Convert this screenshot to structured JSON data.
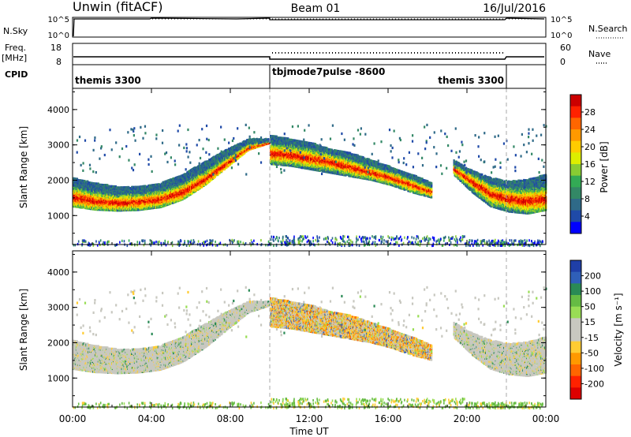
{
  "header": {
    "site": "Unwin (fitACF)",
    "beam": "Beam 01",
    "date": "16/Jul/2016"
  },
  "panel_nsky": {
    "left_label": "N.Sky",
    "right_label": "N.Search",
    "left_ticks": [
      "10^5",
      "10^0"
    ],
    "right_ticks": [
      "10^5",
      "10^0"
    ]
  },
  "panel_freq": {
    "left_label": "Freq.",
    "left_unit": "[MHz]",
    "right_label": "Nave",
    "left_ticks": [
      "18",
      "8"
    ],
    "right_ticks": [
      "60",
      "0"
    ]
  },
  "panel_cpid": {
    "label": "CPID",
    "segments": [
      {
        "start": 0,
        "end": 10,
        "name": "themis 3300"
      },
      {
        "start": 10,
        "end": 22,
        "name": "tbjmode7pulse -8600"
      },
      {
        "start": 22,
        "end": 24,
        "name": "themis 3300"
      }
    ],
    "boundaries": [
      10,
      22
    ]
  },
  "x_axis": {
    "title": "Time UT",
    "ticks": [
      0,
      4,
      8,
      12,
      16,
      20,
      24
    ],
    "tick_labels": [
      "00:00",
      "04:00",
      "08:00",
      "12:00",
      "16:00",
      "20:00",
      "00:00"
    ],
    "range": [
      0,
      24
    ]
  },
  "power_panel": {
    "ylabel": "Slant Range [km]",
    "yticks": [
      "1000",
      "2000",
      "3000",
      "4000"
    ],
    "ylim": [
      180,
      4600
    ],
    "colorbar_title": "Power [dB]",
    "colorbar_labels": [
      "28",
      "24",
      "20",
      "16",
      "12",
      "8",
      "4"
    ],
    "colorbar_colors": [
      "#cc0000",
      "#ff2200",
      "#ff6600",
      "#ff9900",
      "#ffcc00",
      "#ddee00",
      "#88cc33",
      "#33aa55",
      "#338866",
      "#2f6a88",
      "#1f4aa8",
      "#0000ff"
    ]
  },
  "velocity_panel": {
    "ylabel": "Slant Range [km]",
    "yticks": [
      "1000",
      "2000",
      "3000",
      "4000"
    ],
    "ylim": [
      180,
      4600
    ],
    "colorbar_title": "Velocity [m s⁻¹]",
    "colorbar_labels": [
      "200",
      "100",
      "50",
      "15",
      "-15",
      "-50",
      "-100",
      "-200"
    ],
    "colorbar_colors": [
      "#1f3fa8",
      "#2f5fb8",
      "#2a8a55",
      "#66bb44",
      "#99dd55",
      "#c8c8c0",
      "#c8c8c0",
      "#ffcc33",
      "#ff9900",
      "#ff6600",
      "#ff2200",
      "#dd0000"
    ]
  },
  "chart_data": {
    "type": "heatmap",
    "x_unit": "hours UT",
    "y_unit": "km",
    "xlim": [
      0,
      24
    ],
    "ylim": [
      180,
      4600
    ],
    "bands": [
      {
        "t0": 0.0,
        "t1": 10.0,
        "lo": [
          1300,
          1210,
          1180,
          1200,
          1280,
          1500,
          1900,
          2400,
          2900,
          3100
        ],
        "hi": [
          2100,
          1950,
          1850,
          1850,
          1950,
          2200,
          2550,
          2900,
          3200,
          3200
        ],
        "core": [
          1550,
          1450,
          1400,
          1420,
          1500,
          1700,
          2050,
          2500,
          2950,
          3100
        ],
        "type": "A"
      },
      {
        "t0": 10.0,
        "t1": 18.2,
        "lo": [
          2500,
          2450,
          2350,
          2250,
          2150,
          2050,
          1900,
          1700,
          1550
        ],
        "hi": [
          3300,
          3200,
          3100,
          2900,
          2800,
          2600,
          2400,
          2200,
          1950
        ],
        "core": [
          2800,
          2750,
          2650,
          2550,
          2400,
          2250,
          2100,
          1900,
          1700
        ],
        "type": "B"
      },
      {
        "t0": 19.3,
        "t1": 24.0,
        "lo": [
          2200,
          1700,
          1300,
          1150,
          1100,
          1200
        ],
        "hi": [
          2600,
          2300,
          2100,
          2000,
          2050,
          2200
        ],
        "core": [
          2350,
          2000,
          1650,
          1500,
          1450,
          1500
        ],
        "type": "C"
      }
    ],
    "ground_scatter_band_km": [
      180,
      450
    ],
    "nave_level": 50,
    "freq_level_mhz": [
      11,
      12
    ]
  }
}
